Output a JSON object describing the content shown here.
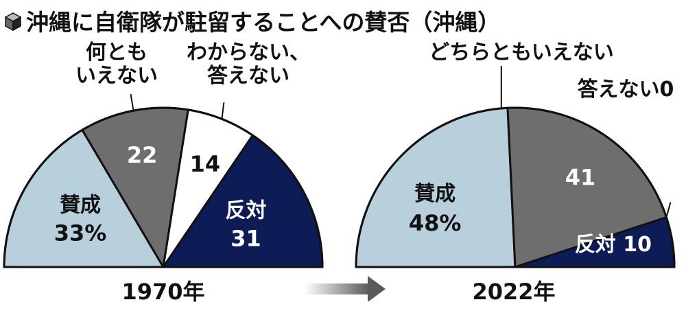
{
  "title": "沖縄に自衛隊が駐留することへの賛否（沖縄）",
  "colors": {
    "favor": "#b8d0dc",
    "neutral": "#6e6e6e",
    "unknown": "#ffffff",
    "oppose": "#0d1b57",
    "outline": "#111111"
  },
  "chart_data": [
    {
      "type": "pie",
      "subtype": "semicircle",
      "year_label": "1970年",
      "unit": "%",
      "slices": [
        {
          "key": "favor",
          "label": "賛成",
          "value": 33,
          "value_text": "33%"
        },
        {
          "key": "neutral",
          "label": "何とも\nいえない",
          "value": 22,
          "value_text": "22"
        },
        {
          "key": "unknown",
          "label": "わからない、\n答えない",
          "value": 14,
          "value_text": "14"
        },
        {
          "key": "oppose",
          "label": "反対",
          "value": 31,
          "value_text": "31"
        }
      ]
    },
    {
      "type": "pie",
      "subtype": "semicircle",
      "year_label": "2022年",
      "unit": "%",
      "slices": [
        {
          "key": "favor",
          "label": "賛成",
          "value": 48,
          "value_text": "48%"
        },
        {
          "key": "neutral",
          "label": "どちらともいえない",
          "value": 41,
          "value_text": "41"
        },
        {
          "key": "unknown",
          "label": "答えない",
          "value": 0,
          "value_text": "0"
        },
        {
          "key": "oppose",
          "label": "反対",
          "value": 10,
          "value_text": "10"
        }
      ]
    }
  ]
}
